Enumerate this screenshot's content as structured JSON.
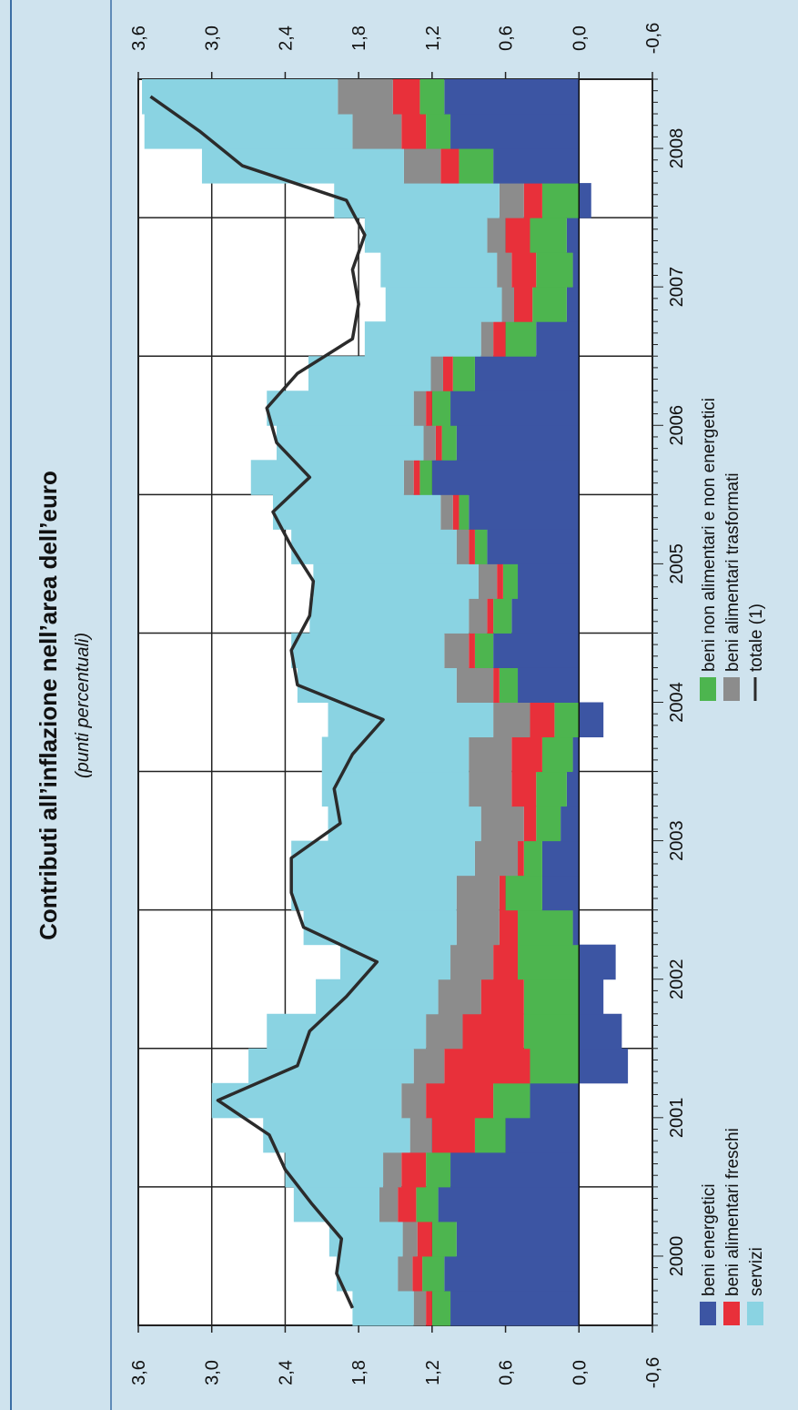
{
  "colors": {
    "background": "#cfe3ee",
    "plot_background": "#ffffff",
    "beni_energetici": "#3c55a3",
    "beni_alimentari_freschi": "#e8303a",
    "servizi": "#8ad3e2",
    "beni_non_alimentari": "#4db54f",
    "beni_alimentari_trasformati": "#8c8c8c",
    "totale_line": "#2b2b2b"
  },
  "chart_data": {
    "type": "area",
    "title": "Contributi all’inflazione nell’area dell’euro",
    "subtitle": "(punti percentuali)",
    "orientation": "rotated 90° counter-clockwise; time runs along the long side of the page",
    "y_ticks": [
      "-0,6",
      "0,0",
      "0,6",
      "1,2",
      "1,8",
      "2,4",
      "3,0",
      "3,6"
    ],
    "y_range": [
      -0.6,
      3.6
    ],
    "x_ticks": [
      "2000",
      "2001",
      "2002",
      "2003",
      "2004",
      "2005",
      "2006",
      "2007",
      "2008"
    ],
    "x_range": [
      1999.5,
      2008.5
    ],
    "grid": true,
    "stack_order": [
      "beni_energetici",
      "beni_non_alimentari",
      "beni_alimentari_freschi",
      "beni_alimentari_trasformati",
      "servizi"
    ],
    "x": [
      1999.5,
      1999.75,
      2000.0,
      2000.25,
      2000.5,
      2000.75,
      2001.0,
      2001.25,
      2001.5,
      2001.75,
      2002.0,
      2002.25,
      2002.5,
      2002.75,
      2003.0,
      2003.25,
      2003.5,
      2003.75,
      2004.0,
      2004.25,
      2004.5,
      2004.75,
      2005.0,
      2005.25,
      2005.5,
      2005.75,
      2006.0,
      2006.25,
      2006.5,
      2006.75,
      2007.0,
      2007.25,
      2007.5,
      2007.75,
      2008.0,
      2008.25
    ],
    "series": [
      {
        "key": "beni_energetici",
        "name": "beni energetici",
        "values": [
          1.05,
          1.1,
          1.0,
          1.15,
          1.05,
          0.6,
          0.4,
          -0.4,
          -0.35,
          -0.2,
          -0.3,
          0.05,
          0.3,
          0.3,
          0.15,
          0.1,
          0.05,
          -0.2,
          0.5,
          0.7,
          0.55,
          0.5,
          0.75,
          0.9,
          1.2,
          1.0,
          1.05,
          0.85,
          0.35,
          0.1,
          0.05,
          0.1,
          -0.1,
          0.7,
          1.05,
          1.1
        ]
      },
      {
        "key": "beni_non_alimentari",
        "name": "beni non alimentari e non energetici",
        "values": [
          0.15,
          0.18,
          0.2,
          0.18,
          0.2,
          0.25,
          0.3,
          0.4,
          0.45,
          0.45,
          0.5,
          0.45,
          0.3,
          0.15,
          0.2,
          0.25,
          0.25,
          0.2,
          0.15,
          0.15,
          0.15,
          0.12,
          0.1,
          0.08,
          0.1,
          0.12,
          0.15,
          0.18,
          0.25,
          0.28,
          0.3,
          0.3,
          0.3,
          0.28,
          0.2,
          0.2
        ]
      },
      {
        "key": "beni_alimentari_freschi",
        "name": "beni alimentari freschi",
        "values": [
          0.05,
          0.08,
          0.12,
          0.15,
          0.2,
          0.35,
          0.55,
          0.7,
          0.5,
          0.35,
          0.2,
          0.15,
          0.05,
          0.05,
          0.1,
          0.2,
          0.25,
          0.2,
          0.05,
          0.05,
          0.05,
          0.05,
          0.05,
          0.05,
          0.05,
          0.05,
          0.05,
          0.08,
          0.1,
          0.15,
          0.2,
          0.2,
          0.15,
          0.15,
          0.2,
          0.22
        ]
      },
      {
        "key": "beni_alimentari_trasformati",
        "name": "beni alimentari trasformati",
        "values": [
          0.1,
          0.12,
          0.12,
          0.15,
          0.15,
          0.18,
          0.2,
          0.25,
          0.3,
          0.35,
          0.35,
          0.35,
          0.35,
          0.35,
          0.35,
          0.35,
          0.35,
          0.3,
          0.3,
          0.2,
          0.15,
          0.15,
          0.1,
          0.1,
          0.08,
          0.1,
          0.1,
          0.1,
          0.1,
          0.1,
          0.12,
          0.15,
          0.2,
          0.3,
          0.4,
          0.45
        ]
      },
      {
        "key": "servizi",
        "name": "servizi",
        "values": [
          0.5,
          0.5,
          0.6,
          0.7,
          0.8,
          1.2,
          1.55,
          1.35,
          1.3,
          1.0,
          0.9,
          1.25,
          1.35,
          1.5,
          1.25,
          1.2,
          1.2,
          1.35,
          1.3,
          1.25,
          1.3,
          1.35,
          1.35,
          1.37,
          1.25,
          1.2,
          1.2,
          1.0,
          0.95,
          0.95,
          0.95,
          1.0,
          1.35,
          1.65,
          1.7,
          1.6
        ]
      },
      {
        "key": "totale",
        "name": "totale (1)",
        "type": "line",
        "values": [
          1.85,
          1.98,
          1.94,
          2.18,
          2.4,
          2.53,
          2.95,
          2.3,
          2.2,
          1.9,
          1.65,
          2.25,
          2.35,
          2.35,
          1.95,
          2.0,
          1.85,
          1.6,
          2.3,
          2.35,
          2.2,
          2.17,
          2.35,
          2.5,
          2.2,
          2.47,
          2.55,
          2.3,
          1.85,
          1.8,
          1.85,
          1.75,
          1.9,
          2.75,
          3.1,
          3.5
        ]
      }
    ],
    "legend": [
      {
        "key": "beni_energetici",
        "label": "beni energetici"
      },
      {
        "key": "beni_alimentari_freschi",
        "label": "beni alimentari freschi"
      },
      {
        "key": "servizi",
        "label": "servizi"
      },
      {
        "key": "beni_non_alimentari",
        "label": "beni non alimentari e non energetici"
      },
      {
        "key": "beni_alimentari_trasformati",
        "label": "beni alimentari trasformati"
      },
      {
        "key": "totale",
        "label": "totale (1)"
      }
    ],
    "legend_position": "bottom"
  }
}
